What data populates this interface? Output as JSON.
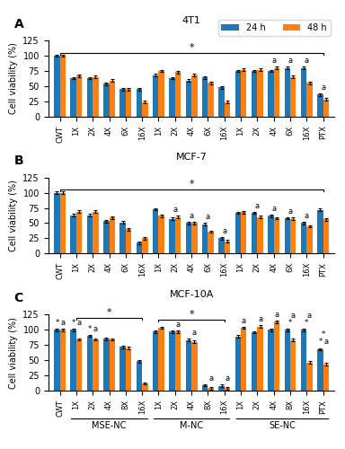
{
  "chart_data": [
    {
      "type": "bar",
      "panel_label": "A",
      "title": "4T1",
      "y_label": "Cell viability (%)",
      "categories": [
        "CWT",
        "1X",
        "2X",
        "4X",
        "6X",
        "16X",
        "1X",
        "2X",
        "4X",
        "6X",
        "16X",
        "1X",
        "2X",
        "4X",
        "6X",
        "16X",
        "PTX"
      ],
      "series": [
        {
          "name": "24 h",
          "values": [
            100,
            63,
            63,
            54,
            45,
            45,
            68,
            63,
            59,
            64,
            48,
            75,
            75,
            75,
            80,
            80,
            36
          ],
          "errors": [
            2,
            2,
            2,
            2,
            2,
            2,
            2,
            2,
            2,
            2,
            2,
            2,
            2,
            2,
            2,
            2,
            2
          ]
        },
        {
          "name": "48 h",
          "values": [
            100,
            67,
            65,
            59,
            45,
            24,
            75,
            73,
            68,
            55,
            24,
            77,
            77,
            80,
            65,
            55,
            28
          ],
          "errors": [
            2,
            2,
            2,
            2,
            2,
            2,
            2,
            2,
            2,
            2,
            2,
            2,
            2,
            2,
            2,
            2,
            2
          ]
        }
      ],
      "ylim": [
        0,
        125
      ],
      "yticks": [
        0,
        25,
        50,
        75,
        100,
        125
      ],
      "legend": "upper right",
      "annotations": [
        {
          "text": "a",
          "index": 13
        },
        {
          "text": "a",
          "index": 14
        },
        {
          "text": "a",
          "index": 15
        },
        {
          "text": "a",
          "index": 16
        }
      ],
      "brackets": [
        {
          "text": "*",
          "from": 0,
          "to": 16
        }
      ]
    },
    {
      "type": "bar",
      "panel_label": "B",
      "title": "MCF-7",
      "y_label": "Cell viability (%)",
      "categories": [
        "CWT",
        "1X",
        "2X",
        "4X",
        "6X",
        "16X",
        "1X",
        "2X",
        "4X",
        "6X",
        "16X",
        "1X",
        "2X",
        "4X",
        "6X",
        "16X",
        "PTX"
      ],
      "series": [
        {
          "name": "24 h",
          "values": [
            100,
            63,
            63,
            53,
            51,
            18,
            73,
            57,
            50,
            48,
            25,
            67,
            67,
            62,
            58,
            50,
            72
          ],
          "errors": [
            2,
            2,
            2,
            2,
            2,
            2,
            2,
            2,
            2,
            2,
            2,
            2,
            2,
            2,
            2,
            2,
            2
          ]
        },
        {
          "name": "48 h",
          "values": [
            100,
            69,
            69,
            59,
            40,
            25,
            62,
            60,
            50,
            36,
            20,
            68,
            60,
            58,
            57,
            45,
            56
          ],
          "errors": [
            2,
            2,
            2,
            2,
            2,
            2,
            2,
            2,
            2,
            2,
            2,
            2,
            2,
            2,
            2,
            2,
            2
          ]
        }
      ],
      "ylim": [
        0,
        125
      ],
      "yticks": [
        0,
        25,
        50,
        75,
        100,
        125
      ],
      "annotations": [
        {
          "text": "a",
          "index": 7
        },
        {
          "text": "a",
          "index": 8
        },
        {
          "text": "a",
          "index": 9
        },
        {
          "text": "a",
          "index": 10
        },
        {
          "text": "a",
          "index": 12
        },
        {
          "text": "a",
          "index": 13
        },
        {
          "text": "a",
          "index": 14
        },
        {
          "text": "a",
          "index": 15
        }
      ],
      "brackets": [
        {
          "text": "*",
          "from": 0,
          "to": 16
        }
      ]
    },
    {
      "type": "bar",
      "panel_label": "C",
      "title": "MCF-10A",
      "y_label": "Cell viability (%)",
      "categories": [
        "CWT",
        "1X",
        "2X",
        "4X",
        "8X",
        "16X",
        "1X",
        "2X",
        "4X",
        "8X",
        "16X",
        "1X",
        "2X",
        "4X",
        "8X",
        "16X",
        "PTX"
      ],
      "series": [
        {
          "name": "24 h",
          "values": [
            100,
            100,
            90,
            85,
            72,
            48,
            97,
            97,
            83,
            9,
            8,
            89,
            96,
            100,
            100,
            100,
            68
          ],
          "errors": [
            2,
            2,
            2,
            2,
            2,
            2,
            2,
            2,
            2,
            2,
            2,
            2,
            2,
            2,
            2,
            2,
            2
          ]
        },
        {
          "name": "48 h",
          "values": [
            100,
            84,
            84,
            84,
            70,
            12,
            103,
            97,
            80,
            4,
            4,
            103,
            105,
            113,
            83,
            46,
            43
          ],
          "errors": [
            2,
            2,
            2,
            2,
            2,
            2,
            2,
            2,
            2,
            2,
            2,
            2,
            2,
            2,
            2,
            2,
            2
          ]
        }
      ],
      "ylim": [
        0,
        125
      ],
      "yticks": [
        0,
        25,
        50,
        75,
        100,
        125
      ],
      "annotations": [
        {
          "text": "*",
          "index": 0,
          "bar": "24 h"
        },
        {
          "text": "*",
          "index": 1,
          "bar": "24 h"
        },
        {
          "text": "*",
          "index": 2,
          "bar": "24 h"
        },
        {
          "text": "*",
          "index": 16,
          "bar": "24 h"
        },
        {
          "text": "*",
          "index": 14
        },
        {
          "text": "*",
          "index": 15
        },
        {
          "text": "*",
          "index": 16
        },
        {
          "text": "a",
          "index": 0,
          "bar": "48 h"
        },
        {
          "text": "a",
          "index": 1,
          "bar": "48 h"
        },
        {
          "text": "a",
          "index": 2,
          "bar": "48 h"
        },
        {
          "text": "a",
          "index": 7,
          "bar": "48 h"
        },
        {
          "text": "a",
          "index": 8,
          "bar": "48 h"
        },
        {
          "text": "a",
          "index": 9,
          "bar": "48 h"
        },
        {
          "text": "a",
          "index": 10,
          "bar": "48 h"
        },
        {
          "text": "a",
          "index": 11,
          "bar": "48 h"
        },
        {
          "text": "a",
          "index": 12,
          "bar": "48 h"
        },
        {
          "text": "a",
          "index": 13,
          "bar": "48 h"
        },
        {
          "text": "a",
          "index": 14,
          "bar": "48 h"
        },
        {
          "text": "a",
          "index": 15,
          "bar": "48 h"
        },
        {
          "text": "a",
          "index": 16,
          "bar": "48 h"
        }
      ],
      "brackets": [
        {
          "text": "*",
          "from": 1,
          "to": 5
        },
        {
          "text": "*",
          "from": 6,
          "to": 10
        }
      ],
      "category_groups": [
        {
          "label": "MSE-NC",
          "from": 1,
          "to": 5
        },
        {
          "label": "M-NC",
          "from": 6,
          "to": 10
        },
        {
          "label": "SE-NC",
          "from": 11,
          "to": 16
        }
      ]
    }
  ]
}
